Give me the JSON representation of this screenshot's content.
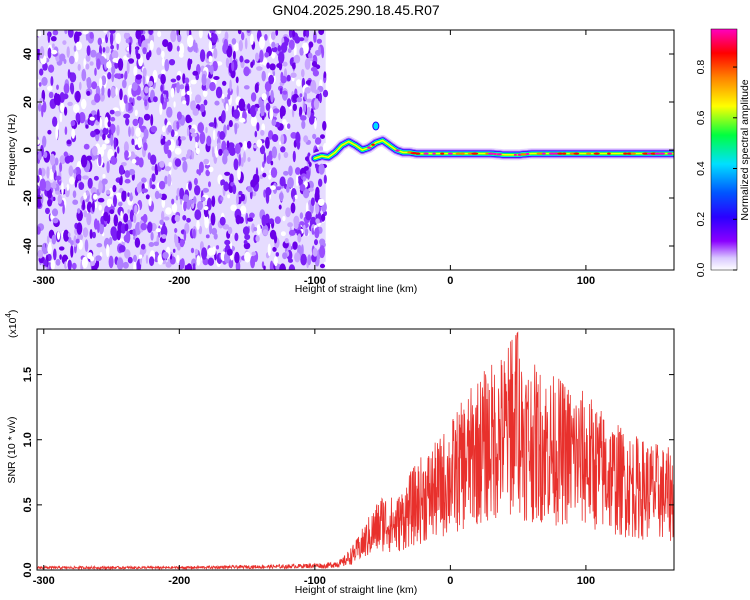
{
  "figure": {
    "title": "GN04.2025.290.18.45.R07"
  },
  "colors": {
    "spectrogram_background": "#7b1ef5",
    "snr_line": "#e8302c",
    "axis": "#000000",
    "colorbar_stops": [
      "#8a00ff",
      "#2a00ff",
      "#0055ff",
      "#00e0ff",
      "#00ff40",
      "#ffff00",
      "#ff8000",
      "#ff0000",
      "#ff00c0"
    ]
  },
  "chart_data": [
    {
      "type": "heatmap",
      "name": "spectrogram",
      "xlabel": "Height of straight line (km)",
      "ylabel": "Frequency (Hz)",
      "xlim": [
        -305,
        165
      ],
      "ylim": [
        -50,
        50
      ],
      "xticks": [
        -300,
        -200,
        -100,
        0,
        100
      ],
      "yticks": [
        -40,
        -20,
        0,
        20,
        40
      ],
      "noise_region_x": [
        -305,
        -92
      ],
      "ridge": {
        "x": [
          -100,
          -95,
          -90,
          -85,
          -80,
          -75,
          -70,
          -65,
          -60,
          -55,
          -50,
          -45,
          -40,
          -35,
          -30,
          -25,
          -20,
          -10,
          0,
          10,
          20,
          30,
          40,
          50,
          60,
          70,
          80,
          90,
          100,
          110,
          120,
          130,
          140,
          150,
          160,
          165
        ],
        "freq": [
          -3.5,
          -2.5,
          -3,
          -1,
          2,
          3.5,
          2,
          0,
          1,
          3,
          4,
          2,
          0,
          -1,
          -1,
          -1.5,
          -1.5,
          -1.5,
          -1.5,
          -1.5,
          -1.5,
          -1.5,
          -2,
          -2,
          -1.5,
          -1.5,
          -1.5,
          -1.5,
          -1.5,
          -1.5,
          -1.5,
          -1.5,
          -1.5,
          -1.5,
          -1.5,
          -1.5
        ]
      },
      "colorbar": {
        "label": "Normalized spectral amplitude",
        "range": [
          0,
          0.95
        ],
        "ticks": [
          "0.0",
          "0.2",
          "0.4",
          "0.6",
          "0.8"
        ]
      }
    },
    {
      "type": "line",
      "name": "snr",
      "xlabel": "Height of straight line (km)",
      "ylabel": "SNR (10 * v/v)",
      "scale_label": "(x10",
      "scale_exp": "4",
      "scale_close": ")",
      "xlim": [
        -305,
        165
      ],
      "ylim": [
        0,
        1.85
      ],
      "xticks": [
        -300,
        -200,
        -100,
        0,
        100
      ],
      "yticks": [
        "0.0",
        "0.5",
        "1.0",
        "1.5"
      ],
      "series": [
        {
          "name": "SNR",
          "x": [
            -305,
            -200,
            -120,
            -95,
            -80,
            -70,
            -60,
            -50,
            -40,
            -30,
            -20,
            -10,
            0,
            10,
            20,
            30,
            40,
            45,
            50,
            55,
            60,
            70,
            80,
            90,
            100,
            110,
            120,
            130,
            140,
            150,
            160,
            165
          ],
          "envelope": [
            0.02,
            0.02,
            0.03,
            0.04,
            0.08,
            0.2,
            0.38,
            0.55,
            0.5,
            0.68,
            0.82,
            0.9,
            1.05,
            1.2,
            1.35,
            1.45,
            1.55,
            1.6,
            1.66,
            1.5,
            1.45,
            1.4,
            1.35,
            1.3,
            1.25,
            1.15,
            1.05,
            0.98,
            0.93,
            0.9,
            0.86,
            0.84
          ]
        }
      ]
    }
  ]
}
